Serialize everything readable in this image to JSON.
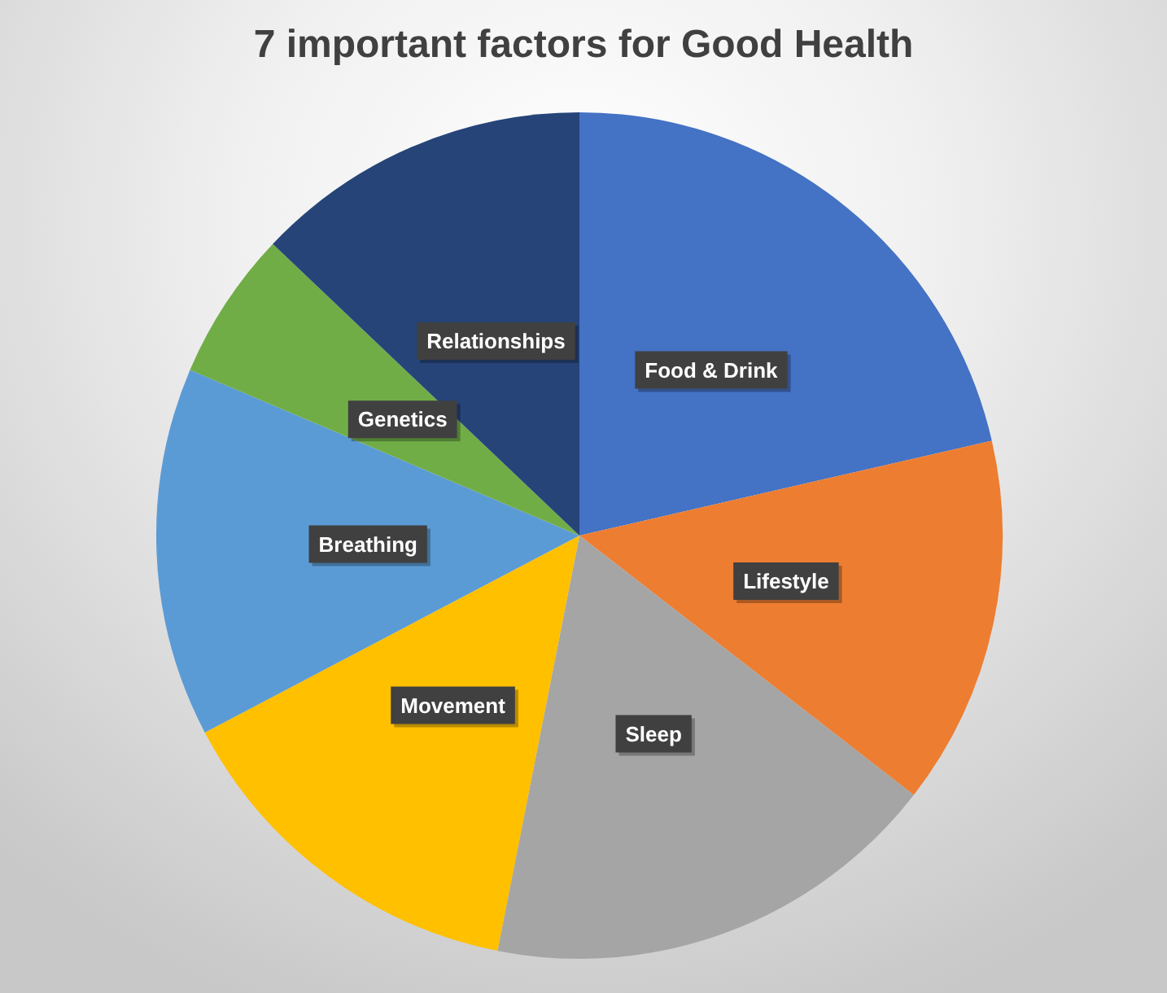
{
  "chart_data": {
    "type": "pie",
    "title": "7 important factors for Good Health",
    "categories": [
      "Food & Drink",
      "Lifestyle",
      "Sleep",
      "Movement",
      "Breathing",
      "Genetics",
      "Relationships"
    ],
    "values": [
      21.4,
      14.1,
      17.6,
      14.2,
      14.1,
      5.7,
      12.9
    ],
    "colors": [
      "#4472c4",
      "#ed7d31",
      "#a5a5a5",
      "#ffc000",
      "#5b9bd5",
      "#70ad47",
      "#264478"
    ],
    "legend": false
  }
}
